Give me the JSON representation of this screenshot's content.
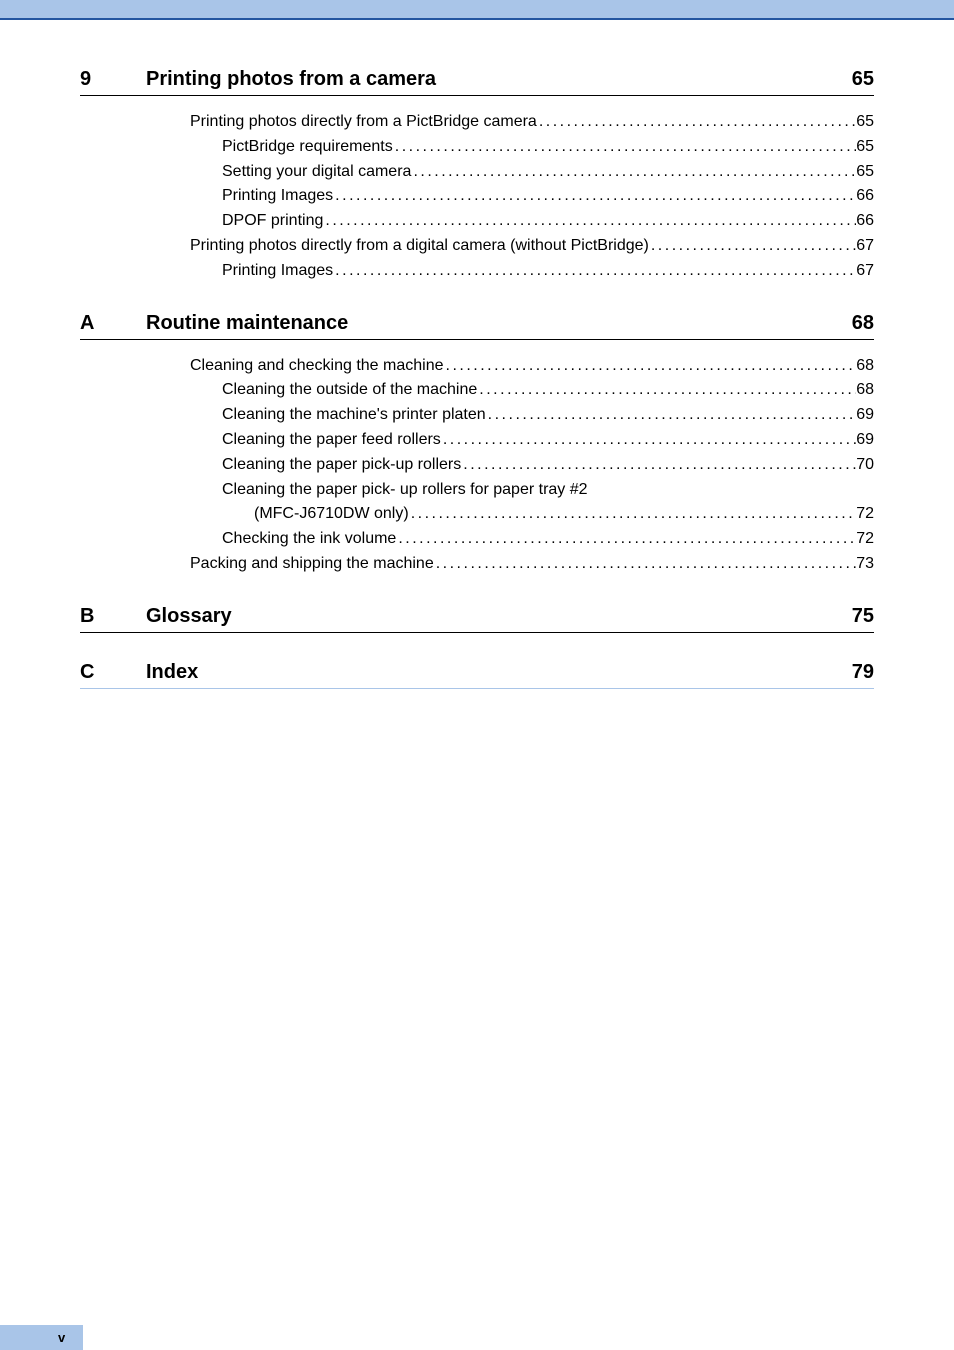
{
  "sections": [
    {
      "letter": "9",
      "title": "Printing photos from a camera",
      "page": "65",
      "rule_light": false,
      "entries": [
        {
          "level": 1,
          "text": "Printing photos directly from a PictBridge camera",
          "page": "65",
          "no_dots": false
        },
        {
          "level": 2,
          "text": "PictBridge requirements",
          "page": "65",
          "no_dots": false
        },
        {
          "level": 2,
          "text": "Setting your digital camera",
          "page": "65",
          "no_dots": false
        },
        {
          "level": 2,
          "text": "Printing Images",
          "page": "66",
          "no_dots": false
        },
        {
          "level": 2,
          "text": "DPOF printing",
          "page": "66",
          "no_dots": false
        },
        {
          "level": 1,
          "text": "Printing photos directly from a digital camera (without PictBridge)",
          "page": "67",
          "no_dots": false
        },
        {
          "level": 2,
          "text": "Printing Images",
          "page": "67",
          "no_dots": false
        }
      ]
    },
    {
      "letter": "A",
      "title": "Routine maintenance",
      "page": "68",
      "rule_light": false,
      "entries": [
        {
          "level": 1,
          "text": "Cleaning and checking the machine",
          "page": "68",
          "no_dots": false
        },
        {
          "level": 2,
          "text": "Cleaning the outside of the machine",
          "page": "68",
          "no_dots": false
        },
        {
          "level": 2,
          "text": "Cleaning the machine's printer platen",
          "page": "69",
          "no_dots": false
        },
        {
          "level": 2,
          "text": "Cleaning the paper feed rollers",
          "page": "69",
          "no_dots": false
        },
        {
          "level": 2,
          "text": "Cleaning the paper pick-up rollers",
          "page": "70",
          "no_dots": false
        },
        {
          "level": 2,
          "text": "Cleaning the paper pick- up rollers for paper tray #2",
          "page": "",
          "no_dots": true
        },
        {
          "level": 3,
          "text": "(MFC-J6710DW only)",
          "page": "72",
          "no_dots": false
        },
        {
          "level": 2,
          "text": "Checking the ink volume",
          "page": "72",
          "no_dots": false
        },
        {
          "level": 1,
          "text": "Packing and shipping the machine",
          "page": "73",
          "no_dots": false
        }
      ]
    },
    {
      "letter": "B",
      "title": "Glossary",
      "page": "75",
      "rule_light": false,
      "entries": []
    },
    {
      "letter": "C",
      "title": "Index",
      "page": "79",
      "rule_light": true,
      "entries": []
    }
  ],
  "footer": {
    "page_number": "v"
  },
  "style": {
    "accent_color": "#a9c5e8",
    "rule_color_dark": "#000000",
    "font_family": "Arial, Helvetica, sans-serif"
  }
}
